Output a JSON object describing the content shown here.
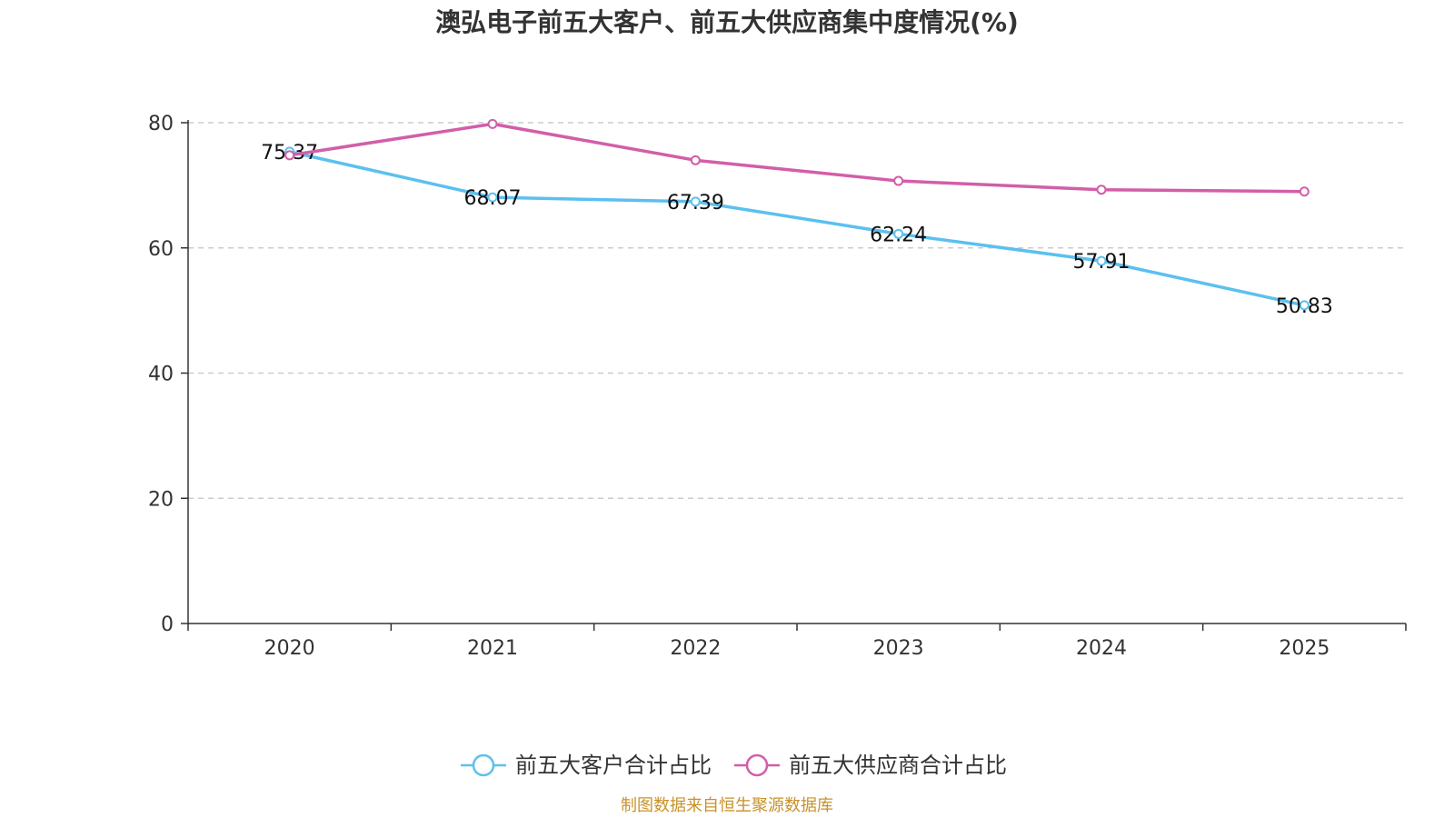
{
  "chart_data": {
    "type": "line",
    "title": "澳弘电子前五大客户、前五大供应商集中度情况(%)",
    "categories": [
      "2020",
      "2021",
      "2022",
      "2023",
      "2024",
      "2025"
    ],
    "ylim": [
      0,
      80
    ],
    "yticks": [
      0,
      20,
      40,
      60,
      80
    ],
    "grid": true,
    "legend_position": "bottom-center",
    "series": [
      {
        "name": "前五大客户合计占比",
        "color": "#5bc0f0",
        "values": [
          75.37,
          68.07,
          67.39,
          62.24,
          57.91,
          50.83
        ],
        "labels": [
          "75.37",
          "68.07",
          "67.39",
          "62.24",
          "57.91",
          "50.83"
        ]
      },
      {
        "name": "前五大供应商合计占比",
        "color": "#d25ea8",
        "values": [
          74.8,
          79.8,
          74.0,
          70.7,
          69.3,
          69.0
        ]
      }
    ]
  },
  "source": "制图数据来自恒生聚源数据库",
  "source_color": "#c8922a"
}
